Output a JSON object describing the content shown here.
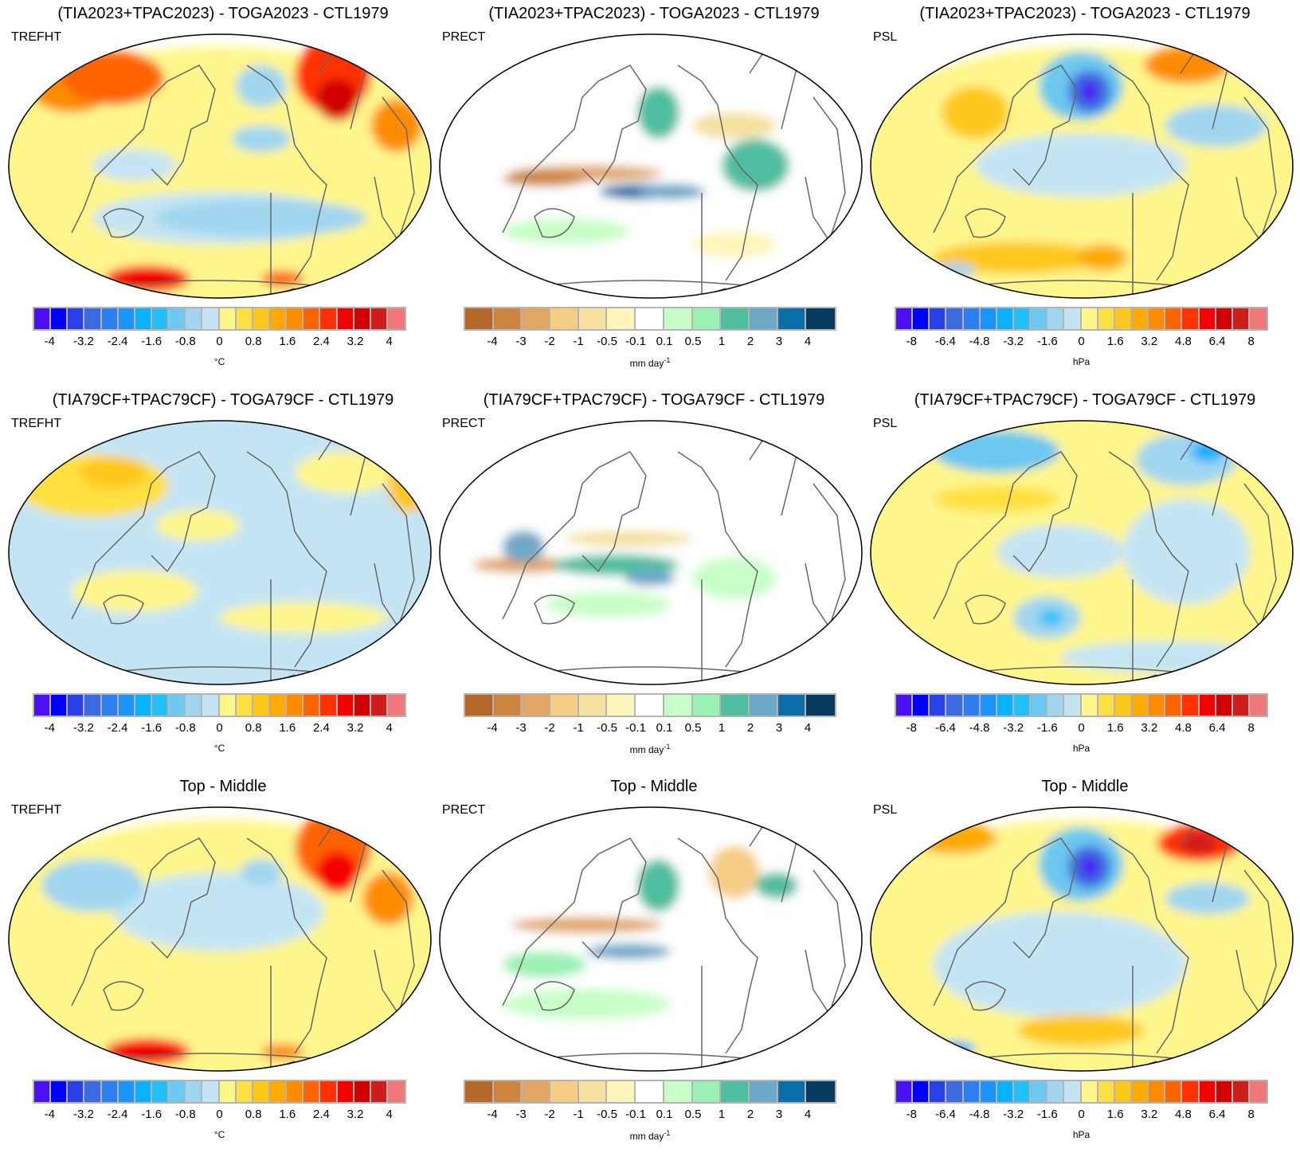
{
  "row_titles": [
    "(TIA2023+TPAC2023) - TOGA2023 - CTL1979",
    "(TIA79CF+TPAC79CF) - TOGA79CF - CTL1979",
    "Top - Middle"
  ],
  "chart_data": [
    {
      "type": "heatmap",
      "variable": "TREFHT",
      "units": "°C",
      "projection": "Robinson/global",
      "colorbar": {
        "ticks": [
          "-4",
          "-3.2",
          "-2.4",
          "-1.6",
          "-0.8",
          "0",
          "0.8",
          "1.6",
          "2.4",
          "3.2",
          "4"
        ],
        "colors": [
          "#4b10f5",
          "#0000ff",
          "#2840e8",
          "#3c6ae0",
          "#2e7ef0",
          "#1a94ff",
          "#0bb0ff",
          "#22c0fa",
          "#6cc8f0",
          "#a0d6f0",
          "#c4e4f4",
          "#fff68c",
          "#ffe040",
          "#ffc81e",
          "#ffaa00",
          "#ff8c00",
          "#ff6400",
          "#ff3200",
          "#f50000",
          "#d20000",
          "#cd1e1e",
          "#f07878"
        ]
      }
    },
    {
      "type": "heatmap",
      "variable": "PRECT",
      "units": "mm day",
      "units_sup": "-1",
      "projection": "Robinson/global",
      "colorbar": {
        "ticks": [
          "-4",
          "-3",
          "-2",
          "-1",
          "-0.5",
          "-0.1",
          "0.1",
          "0.5",
          "1",
          "2",
          "3",
          "4"
        ],
        "colors": [
          "#b4692a",
          "#cd853f",
          "#e1a564",
          "#f5cd84",
          "#f5e09e",
          "#fff5ba",
          "#ffffff",
          "#c8ffc8",
          "#9bf0b4",
          "#50bea0",
          "#6ea8c8",
          "#0a6eaa",
          "#063a5e"
        ]
      }
    },
    {
      "type": "heatmap",
      "variable": "PSL",
      "units": "hPa",
      "projection": "Robinson/global",
      "colorbar": {
        "ticks": [
          "-8",
          "-6.4",
          "-4.8",
          "-3.2",
          "-1.6",
          "0",
          "1.6",
          "3.2",
          "4.8",
          "6.4",
          "8"
        ],
        "colors": [
          "#4b10f5",
          "#0000ff",
          "#2840e8",
          "#3c6ae0",
          "#2e7ef0",
          "#1a94ff",
          "#0bb0ff",
          "#22c0fa",
          "#6cc8f0",
          "#a0d6f0",
          "#c4e4f4",
          "#fff68c",
          "#ffe040",
          "#ffc81e",
          "#ffaa00",
          "#ff8c00",
          "#ff6400",
          "#ff3200",
          "#f50000",
          "#d20000",
          "#cd1e1e",
          "#f07878"
        ]
      }
    }
  ]
}
